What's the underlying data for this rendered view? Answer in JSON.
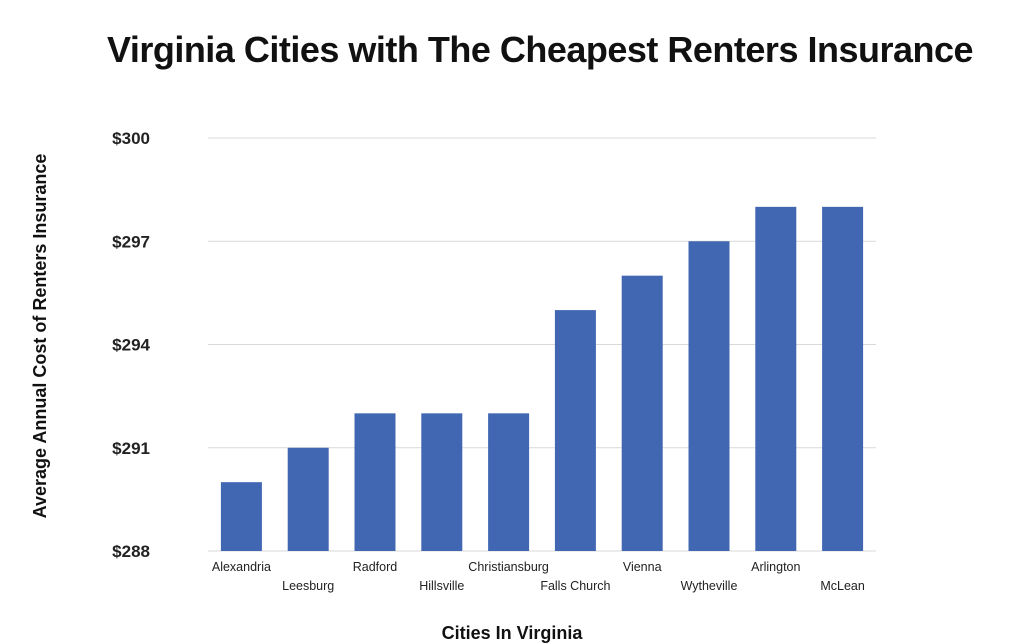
{
  "chart_data": {
    "type": "bar",
    "title": "Virginia Cities with The Cheapest Renters Insurance",
    "xlabel": "Cities In Virginia",
    "ylabel": "Average Annual Cost of Renters Insurance",
    "categories": [
      "Alexandria",
      "Leesburg",
      "Radford",
      "Hillsville",
      "Christiansburg",
      "Falls Church",
      "Vienna",
      "Wytheville",
      "Arlington",
      "McLean"
    ],
    "values": [
      290,
      291,
      292,
      292,
      292,
      295,
      296,
      297,
      298,
      298
    ],
    "ylim": [
      288,
      300
    ],
    "yticks": [
      288,
      291,
      294,
      297,
      300
    ],
    "ytick_labels": [
      "$288",
      "$291",
      "$294",
      "$297",
      "$300"
    ],
    "grid": true,
    "bar_color": "#4267b2"
  }
}
